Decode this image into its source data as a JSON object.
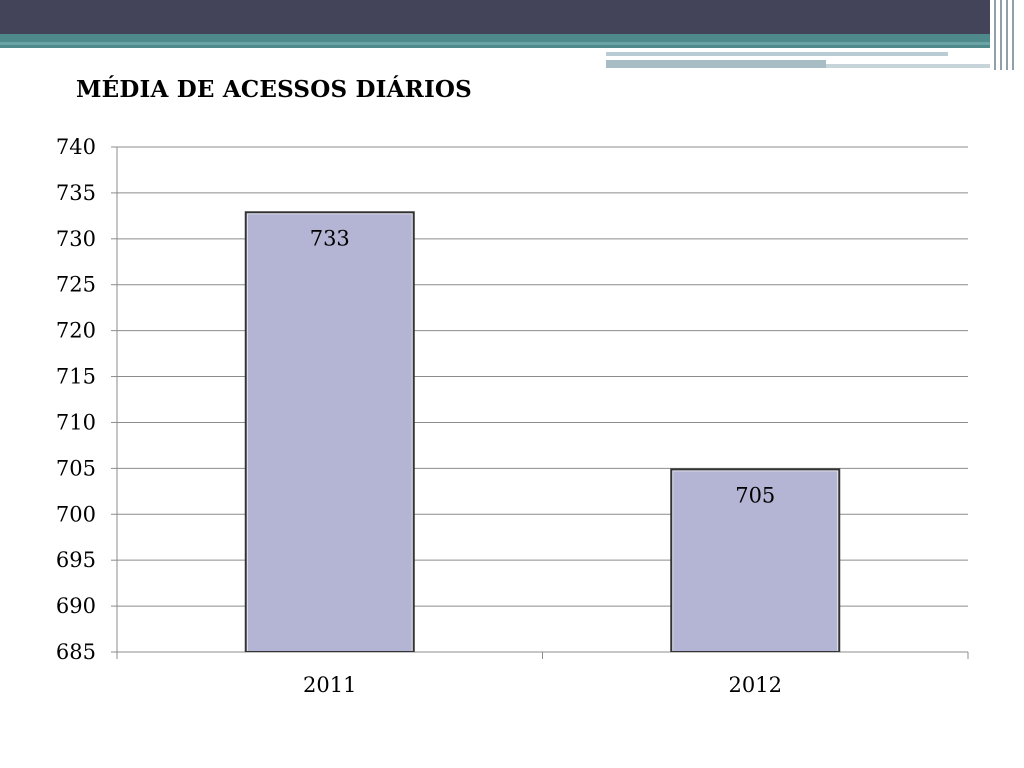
{
  "slide": {
    "title": "MÉDIA DE ACESSOS DIÁRIOS"
  },
  "colors": {
    "bar_fill": "#b4b4d4",
    "bar_stroke": "#333333",
    "grid": "#8c8c8c",
    "header_dark": "#434359",
    "header_teal": "#4e8a8c"
  },
  "chart_data": {
    "type": "bar",
    "title": "MÉDIA DE ACESSOS DIÁRIOS",
    "xlabel": "",
    "ylabel": "",
    "categories": [
      "2011",
      "2012"
    ],
    "values": [
      733,
      705
    ],
    "data_labels": [
      "733",
      "705"
    ],
    "ylim": [
      685,
      740
    ],
    "ytick_step": 5,
    "yticks": [
      "685",
      "690",
      "695",
      "700",
      "705",
      "710",
      "715",
      "720",
      "725",
      "730",
      "735",
      "740"
    ],
    "grid": true,
    "legend": "none",
    "data_labels_position": "inside-top"
  }
}
